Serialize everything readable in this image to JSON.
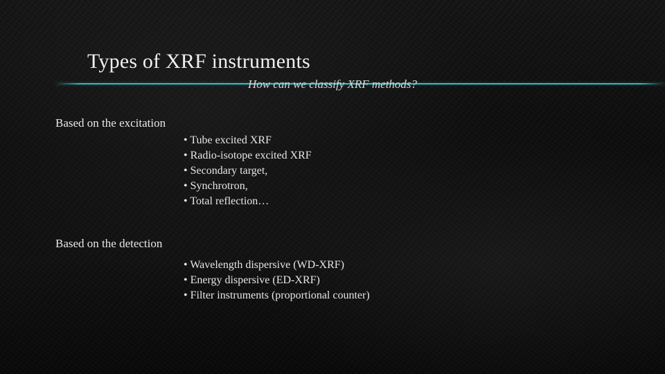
{
  "colors": {
    "background_base": "#0d0d0d",
    "text": "#e8e8e8",
    "accent_rule": "#3cc8d2"
  },
  "typography": {
    "title_fontsize_pt": 22,
    "subtitle_fontsize_pt": 13,
    "body_fontsize_pt": 12,
    "font_family": "Georgia / Times-like serif"
  },
  "title": "Types of XRF instruments",
  "subtitle": "How can we classify XRF methods?",
  "sections": [
    {
      "label": "Based on the excitation",
      "items": [
        "Tube excited XRF",
        "Radio-isotope excited XRF",
        "Secondary target,",
        "Synchrotron,",
        "Total reflection…"
      ]
    },
    {
      "label": "Based on the detection",
      "items": [
        "Wavelength dispersive (WD-XRF)",
        "Energy dispersive (ED-XRF)",
        "Filter instruments (proportional counter)"
      ]
    }
  ]
}
